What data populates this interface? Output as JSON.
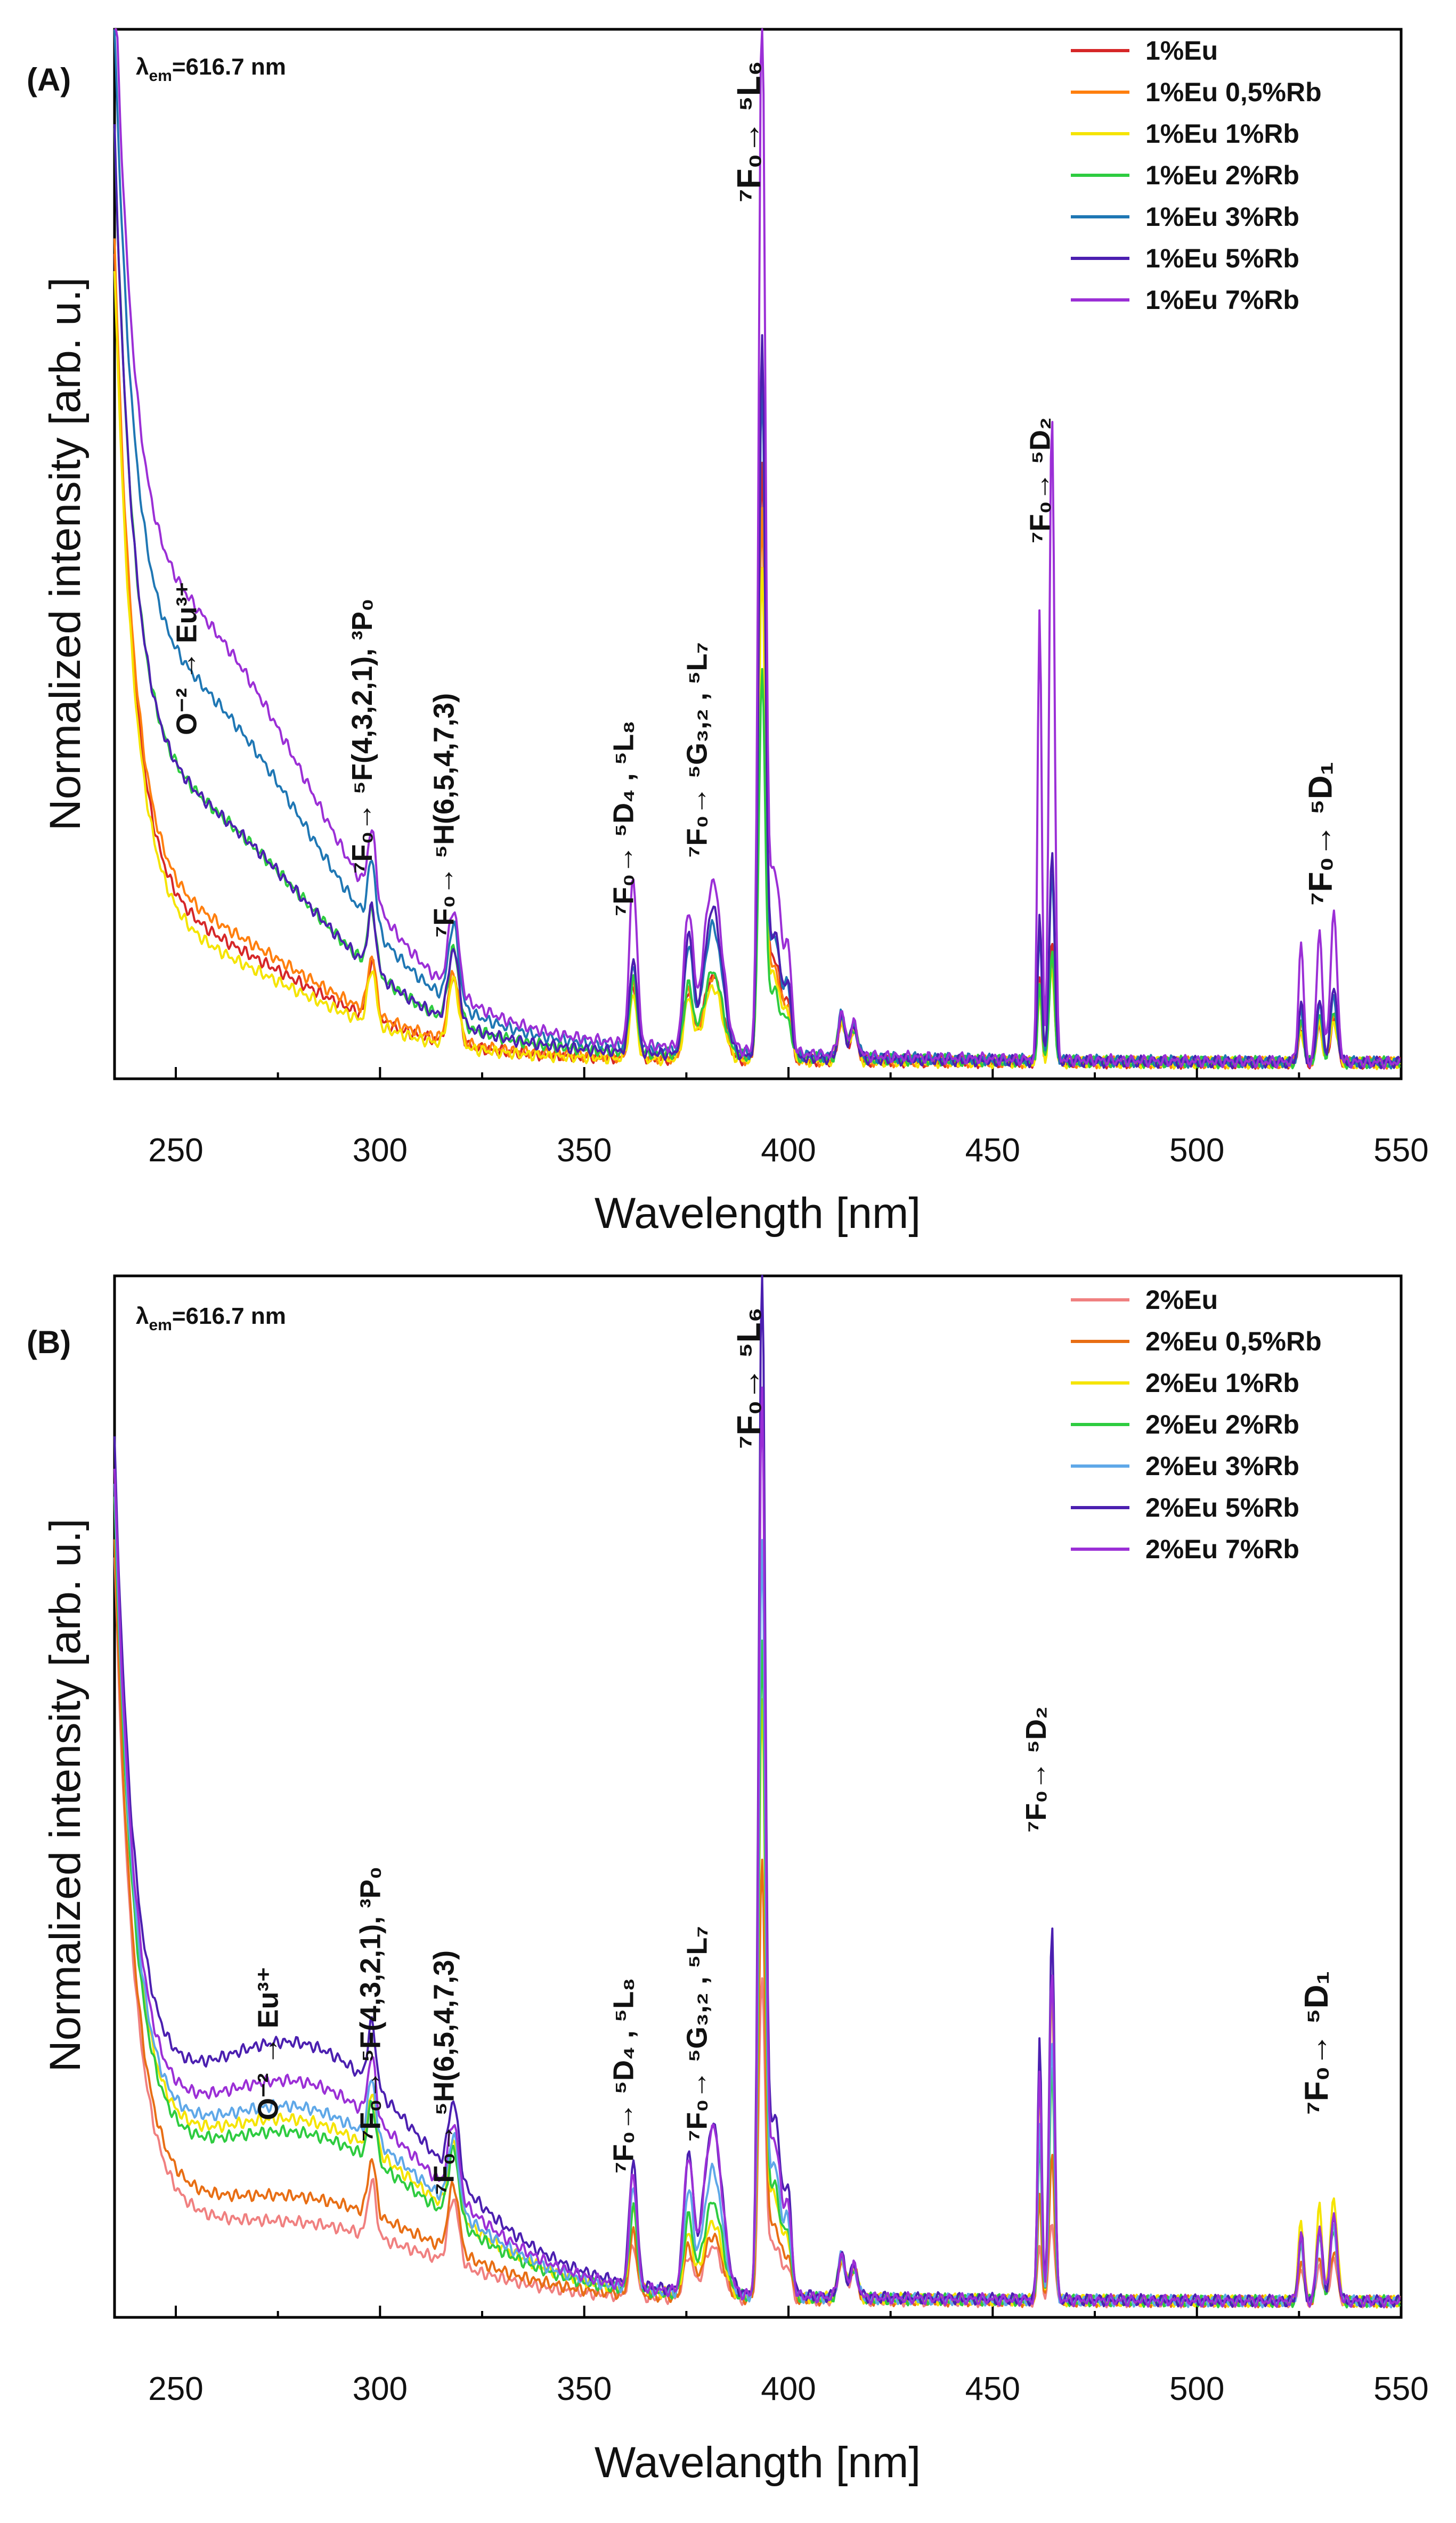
{
  "chart_data": [
    {
      "type": "line",
      "panel_label": "(A)",
      "lambda_label": "λem=616.7 nm",
      "lambda_sym": "λ",
      "lambda_sub": "em",
      "lambda_val": "=616.7 nm",
      "xlabel": "Wavelength [nm]",
      "ylabel": "Normalized intensity [arb. u.]",
      "xlim": [
        235,
        550
      ],
      "ylim": [
        0,
        1.0
      ],
      "xticks": [
        250,
        300,
        350,
        400,
        450,
        500,
        550
      ],
      "legend_position": "top-right",
      "annotations": [
        {
          "text": "O⁻² → Eu³⁺",
          "x": 255
        },
        {
          "text": "⁷F₀→ ⁵F(4,3,2,1), ³P₀",
          "x": 298
        },
        {
          "text": "⁷F₀→ ⁵H(6,5,4,7,3)",
          "x": 318
        },
        {
          "text": "⁷F₀→ ⁵D₄ , ⁵L₈",
          "x": 362
        },
        {
          "text": "⁷F₀→ ⁵G₃,₂ , ⁵L₇",
          "x": 380
        },
        {
          "text": "⁷F₀→ ⁵L₆",
          "x": 393
        },
        {
          "text": "⁷F₀→ ⁵D₂",
          "x": 464
        },
        {
          "text": "⁷F₀→ ⁵D₁",
          "x": 533
        }
      ],
      "series": [
        {
          "name": "1%Eu",
          "color": "#d62728",
          "plateau": 0.08,
          "peaks": {
            "362": 0.07,
            "380": 0.08,
            "393": 0.55,
            "464": 0.12,
            "533": 0.04
          }
        },
        {
          "name": "1%Eu 0,5%Rb",
          "color": "#ff7f0e",
          "plateau": 0.09,
          "peaks": {
            "362": 0.07,
            "380": 0.08,
            "393": 0.5,
            "464": 0.1,
            "533": 0.05
          }
        },
        {
          "name": "1%Eu 1%Rb",
          "color": "#f5e400",
          "plateau": 0.07,
          "peaks": {
            "362": 0.06,
            "380": 0.07,
            "393": 0.45,
            "464": 0.09,
            "533": 0.04
          }
        },
        {
          "name": "1%Eu 2%Rb",
          "color": "#2ecc40",
          "plateau": 0.17,
          "peaks": {
            "362": 0.07,
            "380": 0.08,
            "393": 0.35,
            "464": 0.1,
            "533": 0.05
          }
        },
        {
          "name": "1%Eu 3%Rb",
          "color": "#1f77b4",
          "plateau": 0.25,
          "peaks": {
            "362": 0.08,
            "380": 0.12,
            "393": 0.62,
            "464": 0.18,
            "533": 0.06
          }
        },
        {
          "name": "1%Eu 5%Rb",
          "color": "#4b1fb0",
          "plateau": 0.17,
          "peaks": {
            "362": 0.09,
            "380": 0.14,
            "393": 0.66,
            "464": 0.2,
            "533": 0.07
          }
        },
        {
          "name": "1%Eu 7%Rb",
          "color": "#9b2fd6",
          "plateau": 0.3,
          "peaks": {
            "362": 0.16,
            "380": 0.16,
            "393": 0.98,
            "464": 0.62,
            "533": 0.14
          }
        }
      ]
    },
    {
      "type": "line",
      "panel_label": "(B)",
      "lambda_label": "λem=616.7 nm",
      "lambda_sym": "λ",
      "lambda_sub": "em",
      "lambda_val": "=616.7 nm",
      "xlabel": "Wavelangth [nm]",
      "ylabel": "Normalized intensity [arb. u.]",
      "xlim": [
        235,
        550
      ],
      "ylim": [
        0,
        1.0
      ],
      "xticks": [
        250,
        300,
        350,
        400,
        450,
        500,
        550
      ],
      "legend_position": "top-right",
      "annotations": [
        {
          "text": "O⁻² → Eu³⁺",
          "x": 275
        },
        {
          "text": "⁷F₀→ ⁵F(4,3,2,1), ³P₀",
          "x": 300
        },
        {
          "text": "⁷F₀→ ⁵H(6,5,4,7,3)",
          "x": 318
        },
        {
          "text": "⁷F₀→ ⁵D₄ , ⁵L₈",
          "x": 362
        },
        {
          "text": "⁷F₀→ ⁵G₃,₂ , ⁵L₇",
          "x": 380
        },
        {
          "text": "⁷F₀→ ⁵L₆",
          "x": 393
        },
        {
          "text": "⁷F₀→ ⁵D₂",
          "x": 463
        },
        {
          "text": "⁷F₀→ ⁵D₁",
          "x": 532
        }
      ],
      "series": [
        {
          "name": "2%Eu",
          "color": "#f08080",
          "plateau": 0.06,
          "peaks": {
            "362": 0.05,
            "380": 0.05,
            "393": 0.3,
            "464": 0.08,
            "533": 0.04
          }
        },
        {
          "name": "2%Eu 0,5%Rb",
          "color": "#e86e14",
          "plateau": 0.08,
          "peaks": {
            "362": 0.06,
            "380": 0.06,
            "393": 0.4,
            "464": 0.14,
            "533": 0.05
          }
        },
        {
          "name": "2%Eu 1%Rb",
          "color": "#f5e400",
          "plateau": 0.14,
          "peaks": {
            "362": 0.08,
            "380": 0.07,
            "393": 0.55,
            "464": 0.3,
            "533": 0.1
          }
        },
        {
          "name": "2%Eu 2%Rb",
          "color": "#2ecc40",
          "plateau": 0.13,
          "peaks": {
            "362": 0.08,
            "380": 0.09,
            "393": 0.6,
            "464": 0.22,
            "533": 0.07
          }
        },
        {
          "name": "2%Eu 3%Rb",
          "color": "#5fa8e8",
          "plateau": 0.15,
          "peaks": {
            "362": 0.1,
            "380": 0.12,
            "393": 0.7,
            "464": 0.25,
            "533": 0.07
          }
        },
        {
          "name": "2%Eu 5%Rb",
          "color": "#4b1fb0",
          "plateau": 0.2,
          "peaks": {
            "362": 0.12,
            "380": 0.16,
            "393": 0.96,
            "464": 0.36,
            "533": 0.08
          }
        },
        {
          "name": "2%Eu 7%Rb",
          "color": "#9b2fd6",
          "plateau": 0.17,
          "peaks": {
            "362": 0.11,
            "380": 0.16,
            "393": 0.84,
            "464": 0.32,
            "533": 0.08
          }
        }
      ]
    }
  ]
}
